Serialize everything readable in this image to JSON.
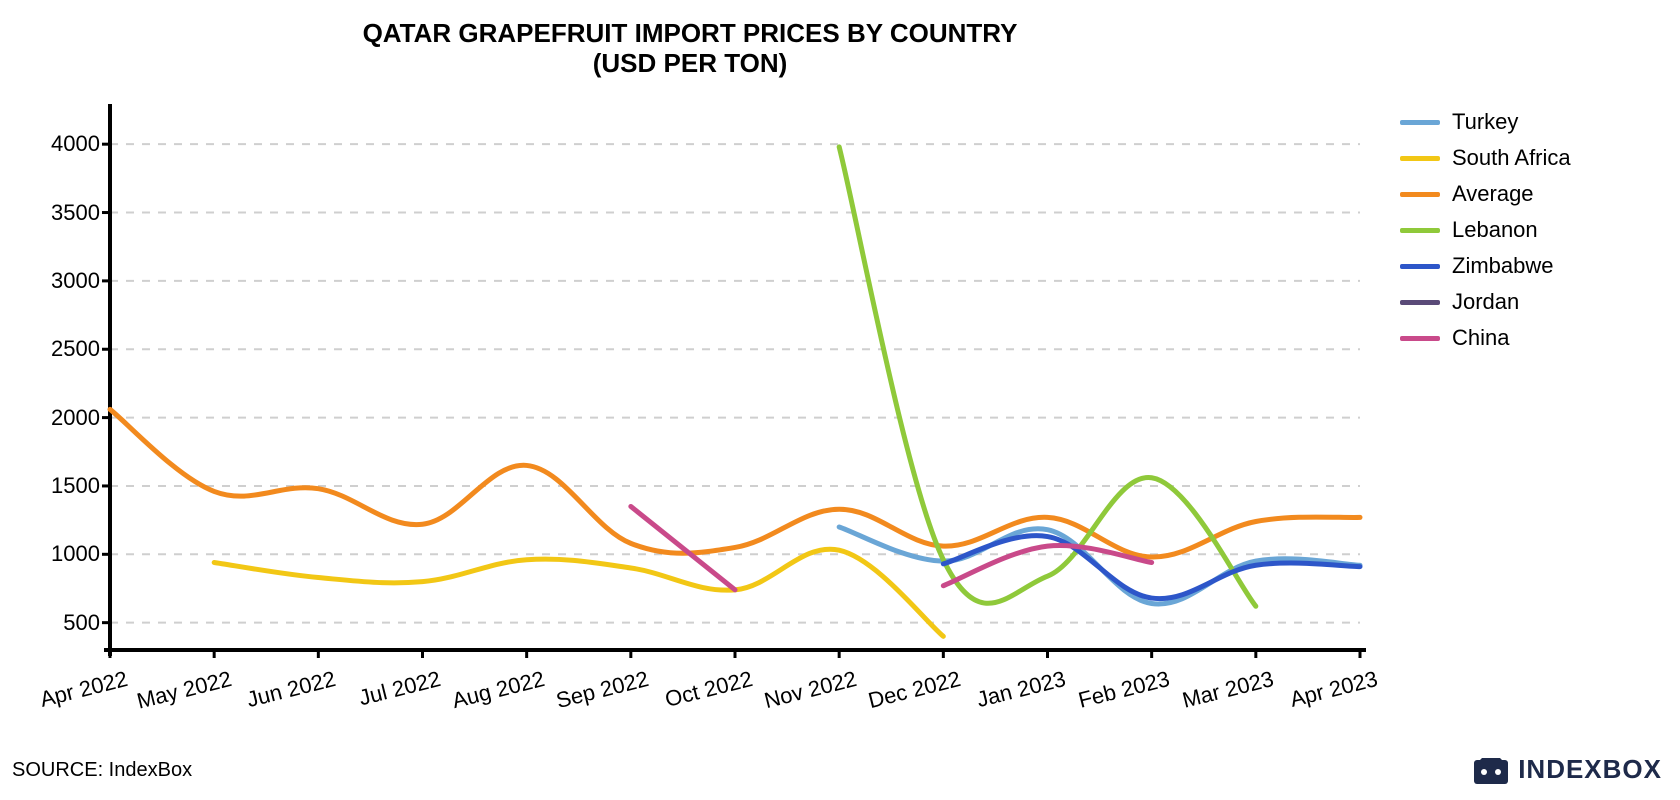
{
  "title_line1": "QATAR GRAPEFRUIT IMPORT PRICES BY COUNTRY",
  "title_line2": "(USD PER TON)",
  "source_label": "SOURCE: IndexBox",
  "logo_text": "INDEXBOX",
  "logo_color": "#1e2a4a",
  "chart": {
    "type": "line",
    "background_color": "#ffffff",
    "grid_color": "#cfcfcf",
    "axis_color": "#000000",
    "line_width": 5,
    "title_fontsize": 26,
    "tick_fontsize": 22,
    "legend_fontsize": 22,
    "x_labels": [
      "Apr 2022",
      "May 2022",
      "Jun 2022",
      "Jul 2022",
      "Aug 2022",
      "Sep 2022",
      "Oct 2022",
      "Nov 2022",
      "Dec 2022",
      "Jan 2023",
      "Feb 2023",
      "Mar 2023",
      "Apr 2023"
    ],
    "y_ticks": [
      500,
      1000,
      1500,
      2000,
      2500,
      3000,
      3500,
      4000
    ],
    "ylim": [
      300,
      4250
    ],
    "x_index_range": [
      0,
      12
    ],
    "series": [
      {
        "name": "Turkey",
        "color": "#6aa6d6",
        "data": [
          [
            7,
            1200
          ],
          [
            8,
            950
          ],
          [
            9,
            1180
          ],
          [
            10,
            640
          ],
          [
            11,
            950
          ],
          [
            12,
            920
          ]
        ]
      },
      {
        "name": "South Africa",
        "color": "#f2c715",
        "data": [
          [
            1,
            940
          ],
          [
            2,
            830
          ],
          [
            3,
            800
          ],
          [
            4,
            960
          ],
          [
            5,
            900
          ],
          [
            6,
            740
          ],
          [
            7,
            1030
          ],
          [
            8,
            400
          ]
        ]
      },
      {
        "name": "Average",
        "color": "#f28a1e",
        "data": [
          [
            0,
            2060
          ],
          [
            1,
            1460
          ],
          [
            2,
            1480
          ],
          [
            3,
            1220
          ],
          [
            4,
            1650
          ],
          [
            5,
            1080
          ],
          [
            6,
            1050
          ],
          [
            7,
            1330
          ],
          [
            8,
            1060
          ],
          [
            9,
            1270
          ],
          [
            10,
            980
          ],
          [
            11,
            1240
          ],
          [
            12,
            1270
          ]
        ]
      },
      {
        "name": "Lebanon",
        "color": "#8fc93a",
        "data": [
          [
            7,
            3980
          ],
          [
            8,
            960
          ],
          [
            9,
            840
          ],
          [
            10,
            1560
          ],
          [
            11,
            620
          ]
        ]
      },
      {
        "name": "Zimbabwe",
        "color": "#2d56c9",
        "data": [
          [
            8,
            930
          ],
          [
            9,
            1130
          ],
          [
            10,
            680
          ],
          [
            11,
            920
          ],
          [
            12,
            910
          ]
        ]
      },
      {
        "name": "Jordan",
        "color": "#5a4a78",
        "data": []
      },
      {
        "name": "China",
        "color": "#c94a8a",
        "data": [
          [
            5,
            1350
          ],
          [
            6,
            740
          ],
          [
            8,
            770
          ],
          [
            9,
            1060
          ],
          [
            10,
            940
          ]
        ]
      }
    ]
  }
}
